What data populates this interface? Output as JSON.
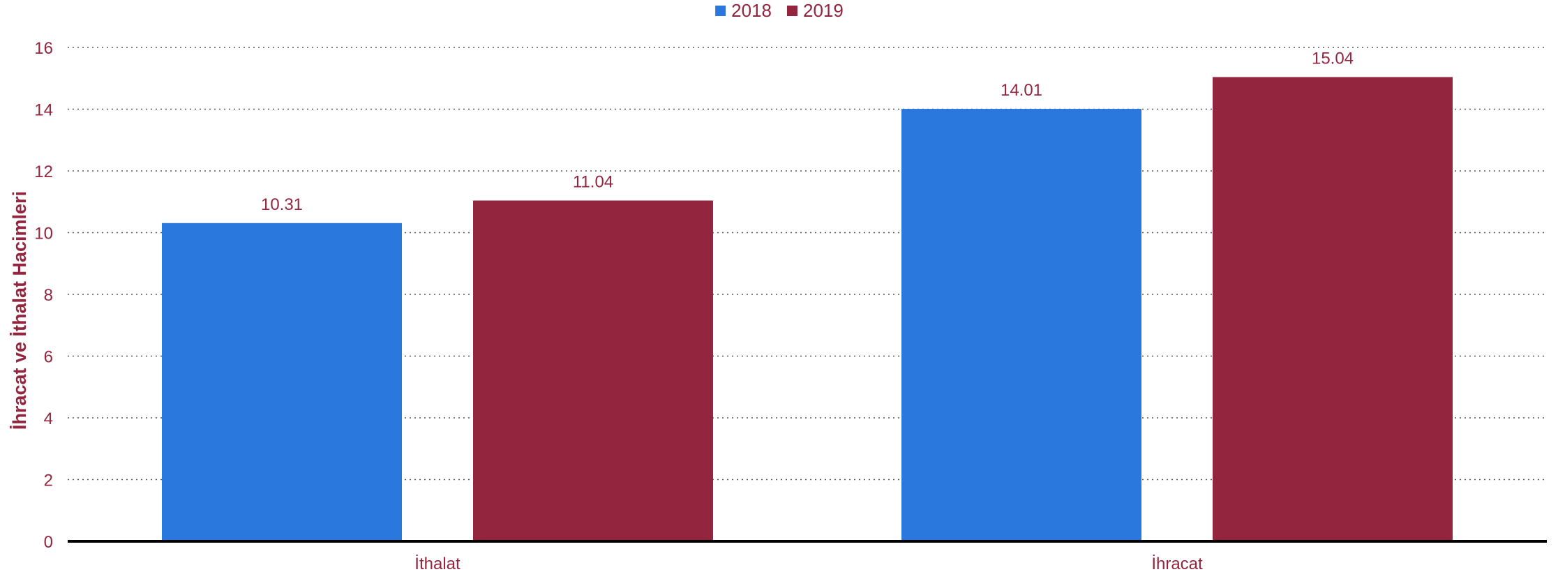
{
  "chart_data": {
    "type": "bar",
    "categories": [
      "İthalat",
      "İhracat"
    ],
    "series": [
      {
        "name": "2018",
        "values": [
          10.31,
          14.01
        ],
        "color": "#2a77de"
      },
      {
        "name": "2019",
        "values": [
          11.04,
          15.04
        ],
        "color": "#93263e"
      }
    ],
    "title": "",
    "xlabel": "",
    "ylabel": "İhracat ve İthalat Hacimleri",
    "ylim": [
      0,
      16
    ],
    "yticks": [
      0,
      2,
      4,
      6,
      8,
      10,
      12,
      14,
      16
    ],
    "grid": "dotted-horizontal",
    "legend_position": "top-center",
    "text_color": "#93263e"
  }
}
